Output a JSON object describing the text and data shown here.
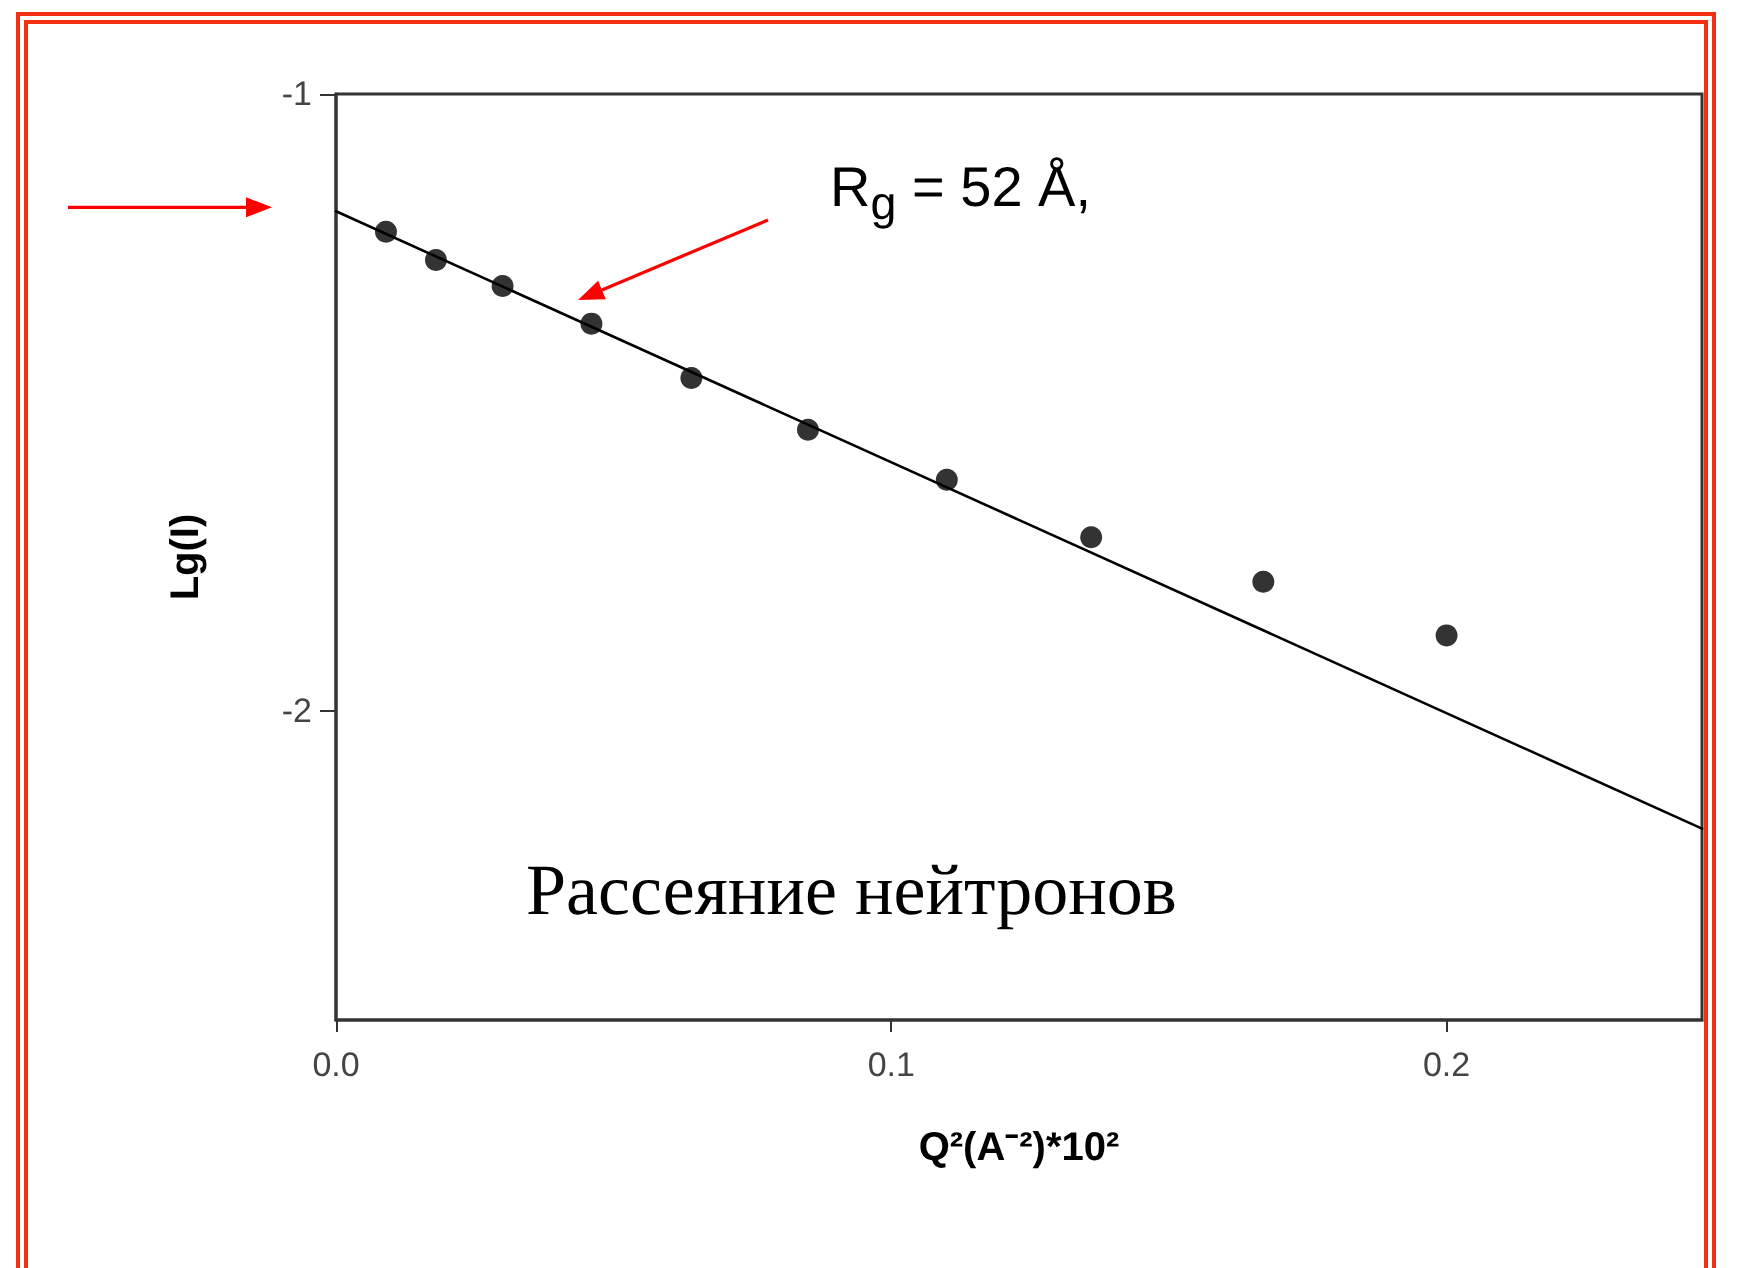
{
  "chart_data": {
    "type": "scatter",
    "xlabel": "Q²(A⁻²)*10²",
    "ylabel": "Lg(I)",
    "x": [
      0.009,
      0.018,
      0.03,
      0.046,
      0.064,
      0.085,
      0.11,
      0.136,
      0.167,
      0.2
    ],
    "series": [
      {
        "color": "#000000",
        "marker": "circle",
        "values": [
          -1.223,
          -1.269,
          -1.311,
          -1.372,
          -1.46,
          -1.544,
          -1.625,
          -1.718,
          -1.79,
          -1.877
        ]
      },
      {
        "type": "line",
        "color": "#000000",
        "marker": "none",
        "x": [
          0,
          0.246
        ],
        "values": [
          -1.19,
          -2.19
        ]
      }
    ],
    "xlim": [
      0,
      0.246
    ],
    "xticks": [
      {
        "value": 0,
        "label": "0.0"
      },
      0.1,
      0.2
    ],
    "ylim": [
      -2.5,
      -1
    ],
    "yticks": [
      -1,
      -2
    ],
    "grid": false,
    "annotations": [
      "R$_{g}$ = 52 Å,",
      "Рассеяние нейтронов"
    ]
  }
}
